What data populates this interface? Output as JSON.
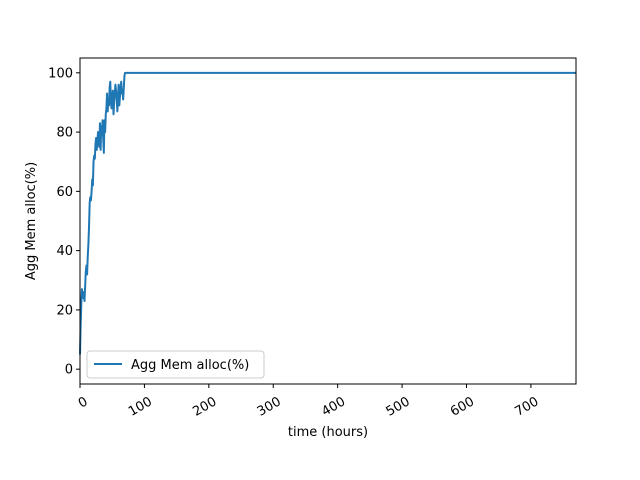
{
  "chart_data": {
    "type": "line",
    "title": "",
    "xlabel": "time (hours)",
    "ylabel": "Agg Mem alloc(%)",
    "xlim": [
      0,
      770
    ],
    "ylim": [
      -5,
      105
    ],
    "x_ticks": [
      0,
      100,
      200,
      300,
      400,
      500,
      600,
      700
    ],
    "x_tick_labels": [
      "0",
      "100",
      "200",
      "300",
      "400",
      "500",
      "600",
      "700"
    ],
    "y_ticks": [
      0,
      20,
      40,
      60,
      80,
      100
    ],
    "y_tick_labels": [
      "0",
      "20",
      "40",
      "60",
      "80",
      "100"
    ],
    "grid": false,
    "legend_position": "lower-left",
    "series": [
      {
        "name": "Agg Mem alloc(%)",
        "color": "#1f77b4",
        "x": [
          0,
          1,
          2,
          3,
          4,
          5,
          6,
          7,
          8,
          9,
          10,
          11,
          12,
          13,
          14,
          15,
          16,
          17,
          18,
          19,
          20,
          21,
          22,
          23,
          24,
          25,
          26,
          27,
          28,
          29,
          30,
          31,
          32,
          33,
          34,
          35,
          36,
          37,
          38,
          39,
          40,
          41,
          42,
          43,
          44,
          45,
          46,
          47,
          48,
          49,
          50,
          51,
          52,
          53,
          54,
          55,
          56,
          57,
          58,
          59,
          60,
          61,
          62,
          63,
          64,
          65,
          66,
          67,
          68,
          69,
          70,
          71,
          72,
          73,
          74,
          75,
          76,
          78,
          80,
          100,
          200,
          300,
          400,
          500,
          600,
          700,
          770
        ],
        "y": [
          5,
          15,
          22,
          27,
          25,
          24,
          26,
          23,
          28,
          33,
          35,
          32,
          38,
          42,
          48,
          56,
          58,
          57,
          60,
          64,
          62,
          70,
          72,
          71,
          76,
          78,
          74,
          77,
          80,
          76,
          75,
          83,
          74,
          82,
          79,
          84,
          78,
          73,
          84,
          80,
          86,
          88,
          93,
          87,
          91,
          89,
          95,
          97,
          90,
          88,
          92,
          94,
          86,
          90,
          93,
          96,
          94,
          91,
          87,
          92,
          96,
          89,
          92,
          95,
          97,
          93,
          94,
          91,
          95,
          99,
          100,
          100,
          100,
          100,
          100,
          100,
          100,
          100,
          100,
          100,
          100,
          100,
          100,
          100,
          100,
          100,
          100
        ]
      }
    ]
  }
}
